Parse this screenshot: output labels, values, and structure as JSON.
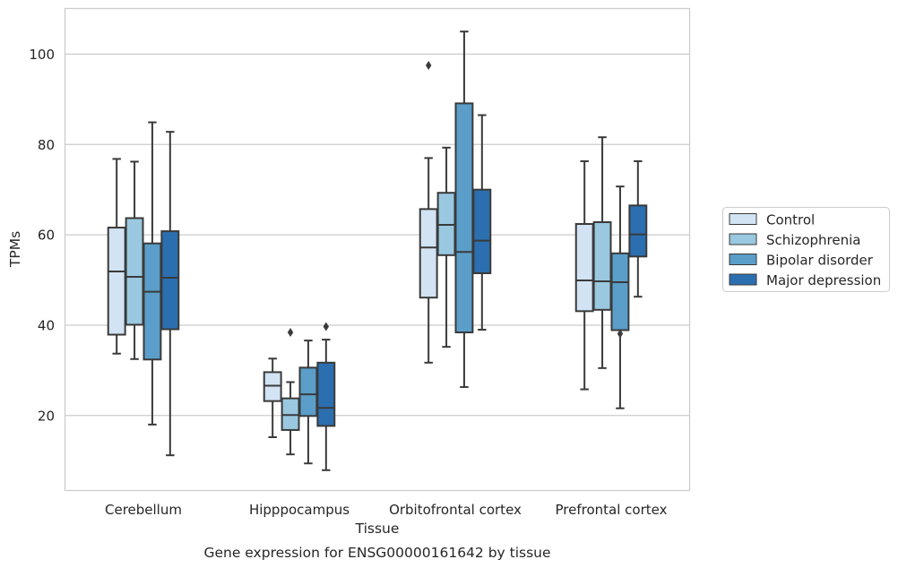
{
  "chart_data": {
    "type": "box",
    "title": "Gene expression for ENSG00000161642 by tissue",
    "xlabel": "Tissue",
    "ylabel": "TPMs",
    "ylim": [
      3.5,
      110
    ],
    "yticks": [
      20,
      40,
      60,
      80,
      100
    ],
    "categories": [
      "Cerebellum",
      "Hipppocampus",
      "Orbitofrontal cortex",
      "Prefrontal cortex"
    ],
    "grid": "horizontal",
    "legend_position": "right",
    "series": [
      {
        "name": "Control",
        "color": "#d2e3f3",
        "boxes": [
          {
            "whislo": 33.7,
            "q1": 37.9,
            "med": 51.9,
            "q3": 61.6,
            "whishi": 76.8,
            "fliers": []
          },
          {
            "whislo": 15.2,
            "q1": 23.2,
            "med": 26.6,
            "q3": 29.6,
            "whishi": 32.6,
            "fliers": []
          },
          {
            "whislo": 31.7,
            "q1": 46.1,
            "med": 57.2,
            "q3": 65.7,
            "whishi": 77.0,
            "fliers": [
              97.5
            ]
          },
          {
            "whislo": 25.8,
            "q1": 43.1,
            "med": 49.9,
            "q3": 62.4,
            "whishi": 76.3,
            "fliers": []
          }
        ]
      },
      {
        "name": "Schizophrenia",
        "color": "#9ac8e0",
        "boxes": [
          {
            "whislo": 32.5,
            "q1": 40.1,
            "med": 50.7,
            "q3": 63.7,
            "whishi": 76.2,
            "fliers": []
          },
          {
            "whislo": 11.4,
            "q1": 16.8,
            "med": 20.1,
            "q3": 23.8,
            "whishi": 27.4,
            "fliers": [
              38.4
            ]
          },
          {
            "whislo": 35.2,
            "q1": 55.5,
            "med": 62.2,
            "q3": 69.3,
            "whishi": 79.3,
            "fliers": []
          },
          {
            "whislo": 30.5,
            "q1": 43.4,
            "med": 49.7,
            "q3": 62.8,
            "whishi": 81.6,
            "fliers": []
          }
        ]
      },
      {
        "name": "Bipolar disorder",
        "color": "#5a9ec9",
        "boxes": [
          {
            "whislo": 18.0,
            "q1": 32.4,
            "med": 47.4,
            "q3": 58.1,
            "whishi": 84.9,
            "fliers": []
          },
          {
            "whislo": 9.4,
            "q1": 19.9,
            "med": 24.7,
            "q3": 30.6,
            "whishi": 36.6,
            "fliers": []
          },
          {
            "whislo": 26.3,
            "q1": 38.4,
            "med": 56.2,
            "q3": 89.1,
            "whishi": 105.0,
            "fliers": []
          },
          {
            "whislo": 21.6,
            "q1": 38.9,
            "med": 49.5,
            "q3": 55.9,
            "whishi": 70.7,
            "fliers": [
              38.1
            ]
          }
        ]
      },
      {
        "name": "Major depression",
        "color": "#2c6fb0",
        "boxes": [
          {
            "whislo": 11.2,
            "q1": 39.1,
            "med": 50.5,
            "q3": 60.8,
            "whishi": 82.8,
            "fliers": []
          },
          {
            "whislo": 7.9,
            "q1": 17.7,
            "med": 21.7,
            "q3": 31.7,
            "whishi": 36.8,
            "fliers": [
              39.7
            ]
          },
          {
            "whislo": 39.0,
            "q1": 51.5,
            "med": 58.7,
            "q3": 70.0,
            "whishi": 86.5,
            "fliers": []
          },
          {
            "whislo": 46.3,
            "q1": 55.2,
            "med": 60.1,
            "q3": 66.5,
            "whishi": 76.3,
            "fliers": []
          }
        ]
      }
    ]
  }
}
